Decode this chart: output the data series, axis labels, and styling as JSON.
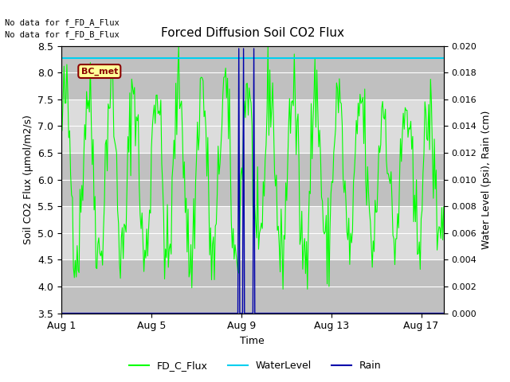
{
  "title": "Forced Diffusion Soil CO2 Flux",
  "xlabel": "Time",
  "ylabel_left": "Soil CO2 Flux (μmol/m2/s)",
  "ylabel_right": "Water Level (psi), Rain (cm)",
  "no_data_text_1": "No data for f_FD_A_Flux",
  "no_data_text_2": "No data for f_FD_B_Flux",
  "bc_met_label": "BC_met",
  "ylim_left": [
    3.5,
    8.5
  ],
  "ylim_right": [
    0.0,
    0.02
  ],
  "yticks_left": [
    3.5,
    4.0,
    4.5,
    5.0,
    5.5,
    6.0,
    6.5,
    7.0,
    7.5,
    8.0,
    8.5
  ],
  "yticks_right": [
    0.0,
    0.002,
    0.004,
    0.006,
    0.008,
    0.01,
    0.012,
    0.014,
    0.016,
    0.018,
    0.02
  ],
  "xtick_labels": [
    "Aug 1",
    "Aug 5",
    "Aug 9",
    "Aug 13",
    "Aug 17"
  ],
  "xtick_positions": [
    0,
    4,
    8,
    12,
    16
  ],
  "water_level_y": 8.27,
  "water_level_color": "#00CFEF",
  "rain_color": "#0000AA",
  "fd_c_flux_color": "#00FF00",
  "plot_bg_color": "#D8D8D8",
  "band_colors": [
    "#C8C8C8",
    "#E0E0E0"
  ],
  "grid_color": "#FFFFFF",
  "legend_entries": [
    "FD_C_Flux",
    "WaterLevel",
    "Rain"
  ],
  "legend_colors": [
    "#00FF00",
    "#00CFEF",
    "#0000AA"
  ],
  "seed": 42,
  "n_points": 408
}
